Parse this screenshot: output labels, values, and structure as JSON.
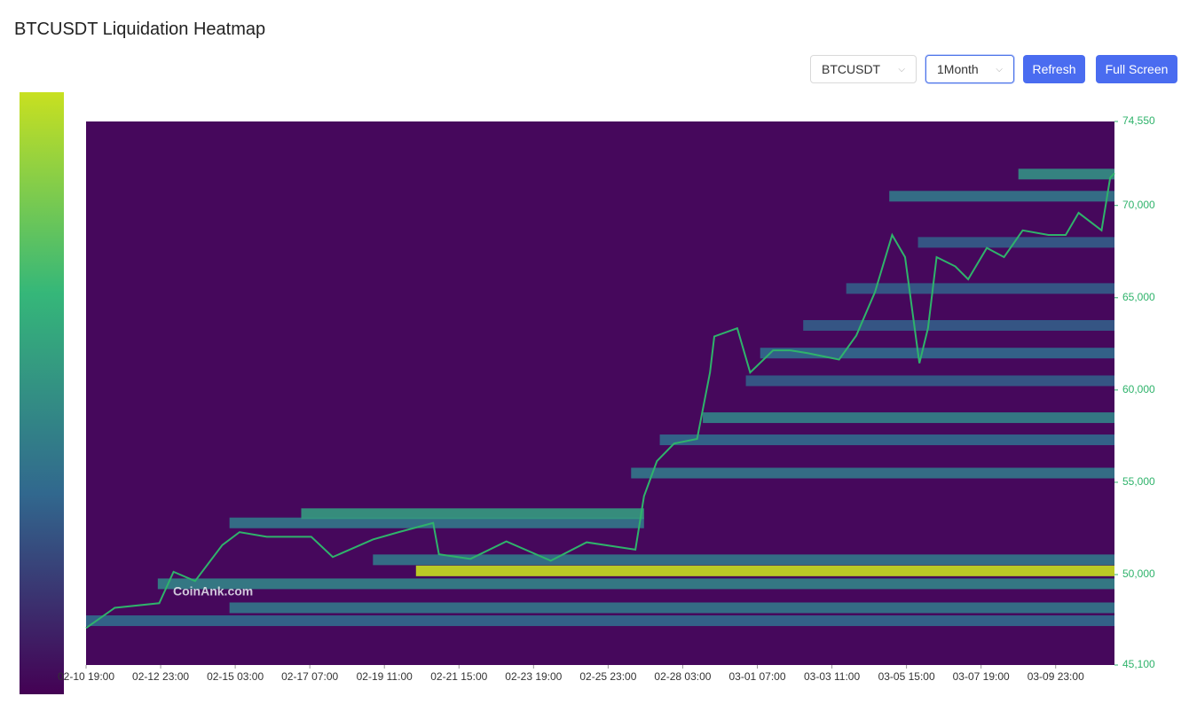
{
  "title": "BTCUSDT Liquidation Heatmap",
  "controls": {
    "symbol": "BTCUSDT",
    "range": "1Month",
    "refresh": "Refresh",
    "fullscreen": "Full Screen"
  },
  "chart_data": {
    "type": "heatmap",
    "watermark": "CoinAnk.com",
    "background": "#46085c",
    "colormap": [
      "#440154",
      "#31688e",
      "#35b779",
      "#c8e020"
    ],
    "xlim": [
      0,
      717
    ],
    "xticks": [
      {
        "value": 0,
        "label": "02-10 19:00"
      },
      {
        "value": 52,
        "label": "02-12 23:00"
      },
      {
        "value": 104,
        "label": "02-15 03:00"
      },
      {
        "value": 156,
        "label": "02-17 07:00"
      },
      {
        "value": 208,
        "label": "02-19 11:00"
      },
      {
        "value": 260,
        "label": "02-21 15:00"
      },
      {
        "value": 312,
        "label": "02-23 19:00"
      },
      {
        "value": 364,
        "label": "02-25 23:00"
      },
      {
        "value": 416,
        "label": "02-28 03:00"
      },
      {
        "value": 468,
        "label": "03-01 07:00"
      },
      {
        "value": 520,
        "label": "03-03 11:00"
      },
      {
        "value": 572,
        "label": "03-05 15:00"
      },
      {
        "value": 624,
        "label": "03-07 19:00"
      },
      {
        "value": 676,
        "label": "03-09 23:00"
      }
    ],
    "ylim": [
      45100,
      74550
    ],
    "yticks": [
      {
        "value": 45100,
        "label": "45,100"
      },
      {
        "value": 50000,
        "label": "50,000"
      },
      {
        "value": 55000,
        "label": "55,000"
      },
      {
        "value": 60000,
        "label": "60,000"
      },
      {
        "value": 65000,
        "label": "65,000"
      },
      {
        "value": 70000,
        "label": "70,000"
      },
      {
        "value": 74550,
        "label": "74,550"
      }
    ],
    "bands": [
      {
        "price": 47500,
        "start": 0,
        "end": 717,
        "intensity": 0.35
      },
      {
        "price": 48200,
        "start": 100,
        "end": 717,
        "intensity": 0.4
      },
      {
        "price": 49500,
        "start": 50,
        "end": 717,
        "intensity": 0.45
      },
      {
        "price": 50200,
        "start": 230,
        "end": 717,
        "intensity": 1
      },
      {
        "price": 50800,
        "start": 200,
        "end": 717,
        "intensity": 0.4
      },
      {
        "price": 52800,
        "start": 100,
        "end": 389,
        "intensity": 0.4
      },
      {
        "price": 53300,
        "start": 150,
        "end": 389,
        "intensity": 0.55
      },
      {
        "price": 55500,
        "start": 380,
        "end": 717,
        "intensity": 0.4
      },
      {
        "price": 57300,
        "start": 400,
        "end": 717,
        "intensity": 0.35
      },
      {
        "price": 58500,
        "start": 430,
        "end": 717,
        "intensity": 0.45
      },
      {
        "price": 60500,
        "start": 460,
        "end": 717,
        "intensity": 0.3
      },
      {
        "price": 62000,
        "start": 470,
        "end": 717,
        "intensity": 0.35
      },
      {
        "price": 63500,
        "start": 500,
        "end": 717,
        "intensity": 0.3
      },
      {
        "price": 65500,
        "start": 530,
        "end": 717,
        "intensity": 0.3
      },
      {
        "price": 68000,
        "start": 580,
        "end": 717,
        "intensity": 0.3
      },
      {
        "price": 70500,
        "start": 560,
        "end": 717,
        "intensity": 0.4
      },
      {
        "price": 71700,
        "start": 650,
        "end": 717,
        "intensity": 0.5
      }
    ],
    "price": {
      "color": "#2fb36b",
      "x": [
        0,
        20,
        51,
        61,
        76,
        95,
        107,
        126,
        157,
        172,
        200,
        218,
        242,
        246,
        268,
        293,
        324,
        349,
        383,
        389,
        398,
        410,
        426,
        435,
        438,
        454,
        463,
        479,
        491,
        503,
        525,
        537,
        550,
        562,
        571,
        581,
        587,
        593,
        606,
        615,
        628,
        640,
        653,
        671,
        683,
        692,
        708,
        714,
        717
      ],
      "values": [
        47100,
        48200,
        48450,
        50150,
        49650,
        51600,
        52300,
        52050,
        52050,
        50950,
        51900,
        52300,
        52800,
        51100,
        50850,
        51800,
        50750,
        51750,
        51350,
        54250,
        56150,
        57100,
        57350,
        60950,
        62900,
        63350,
        60950,
        62150,
        62150,
        62000,
        61650,
        62950,
        65300,
        68400,
        67200,
        61450,
        63350,
        67200,
        66700,
        66000,
        67700,
        67200,
        68650,
        68400,
        68400,
        69600,
        68650,
        71500,
        71750
      ]
    }
  }
}
